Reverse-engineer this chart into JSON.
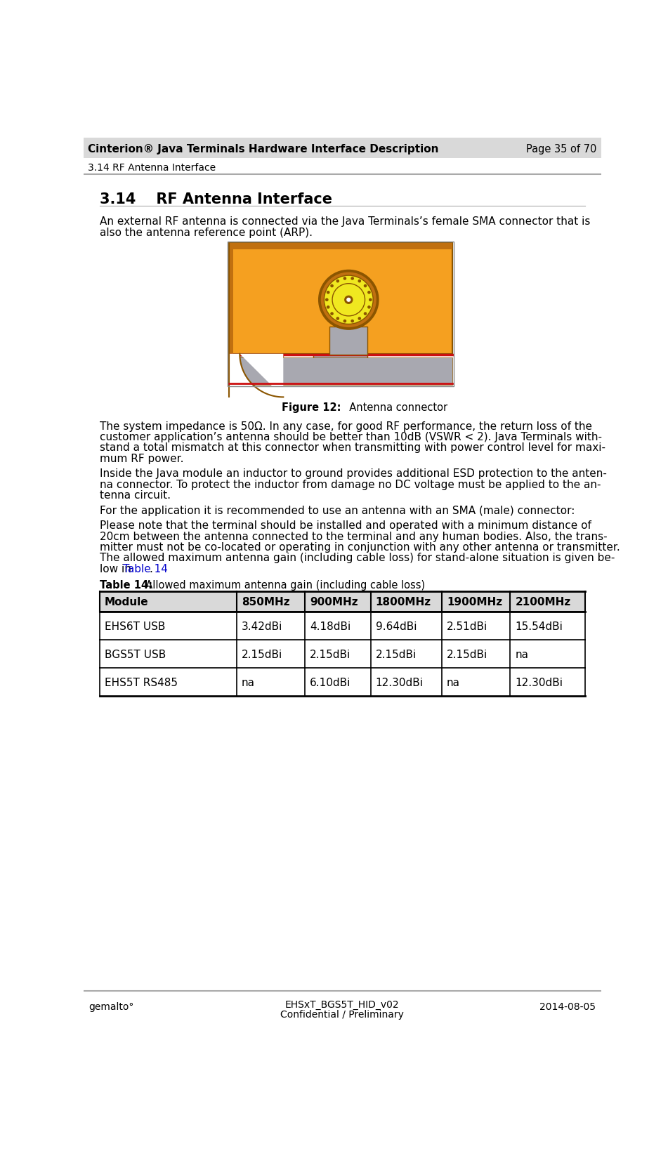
{
  "header_title": "Cinterion® Java Terminals Hardware Interface Description",
  "header_right": "Page 35 of 70",
  "header_sub": "3.14 RF Antenna Interface",
  "section_title": "3.14    RF Antenna Interface",
  "para1": "An external RF antenna is connected via the Java Terminals’s female SMA connector that is\nalso the antenna reference point (ARP).",
  "fig_caption_bold": "Figure 12:",
  "fig_caption_normal": "  Antenna connector",
  "para2": "The system impedance is 50Ω. In any case, for good RF performance, the return loss of the\ncustomer application’s antenna should be better than 10dB (VSWR < 2). Java Terminals with-\nstand a total mismatch at this connector when transmitting with power control level for maxi-\nmum RF power.",
  "para3": "Inside the Java module an inductor to ground provides additional ESD protection to the anten-\nna connector. To protect the inductor from damage no DC voltage must be applied to the an-\ntenna circuit.",
  "para4": "For the application it is recommended to use an antenna with an SMA (male) connector:",
  "para5_lines": [
    "Please note that the terminal should be installed and operated with a minimum distance of",
    "20cm between the antenna connected to the terminal and any human bodies. Also, the trans-",
    "mitter must not be co-located or operating in conjunction with any other antenna or transmitter.",
    "The allowed maximum antenna gain (including cable loss) for stand-alone situation is given be-",
    "low in "
  ],
  "para5_link": "Table 14",
  "para5_end": ".",
  "table_caption_bold": "Table 14:",
  "table_caption_normal": "  Allowed maximum antenna gain (including cable loss)",
  "table_headers": [
    "Module",
    "850MHz",
    "900MHz",
    "1800MHz",
    "1900MHz",
    "2100MHz"
  ],
  "table_rows": [
    [
      "EHS6T USB",
      "3.42dBi",
      "4.18dBi",
      "9.64dBi",
      "2.51dBi",
      "15.54dBi"
    ],
    [
      "BGS5T USB",
      "2.15dBi",
      "2.15dBi",
      "2.15dBi",
      "2.15dBi",
      "na"
    ],
    [
      "EHS5T RS485",
      "na",
      "6.10dBi",
      "12.30dBi",
      "na",
      "12.30dBi"
    ]
  ],
  "footer_left": "gemalto°",
  "footer_center1": "EHSxT_BGS5T_HID_v02",
  "footer_center2": "Confidential / Preliminary",
  "footer_right": "2014-08-05",
  "header_bg": "#d9d9d9",
  "table_header_bg": "#d9d9d9",
  "link_color": "#0000CC",
  "text_color": "#000000",
  "bg_color": "#ffffff",
  "orange_main": "#F5A020",
  "orange_dark": "#C07010",
  "orange_edge": "#8B5500",
  "gray_metal": "#A8A8B0",
  "gray_dark": "#707080",
  "yellow_sma": "#F0E820",
  "red_line": "#CC1010",
  "line_color": "#aaaaaa"
}
